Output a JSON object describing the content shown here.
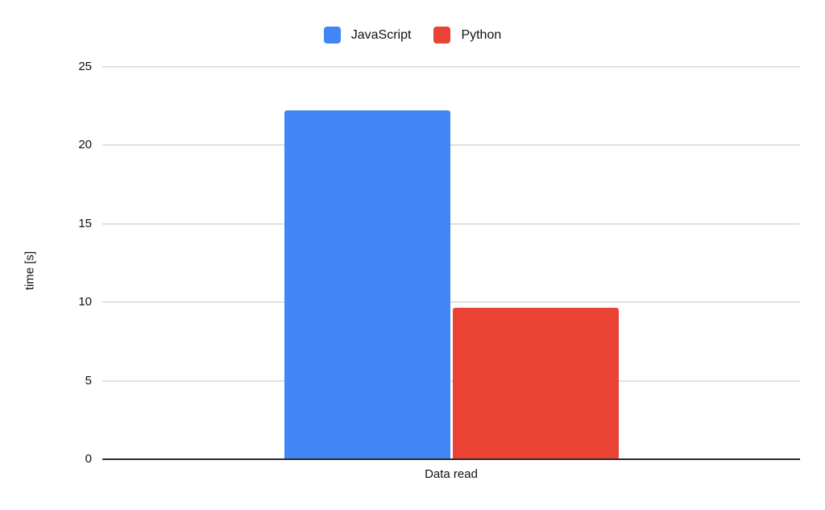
{
  "chart_data": {
    "type": "bar",
    "title": "",
    "categories": [
      "Data read"
    ],
    "series": [
      {
        "name": "JavaScript",
        "color": "#4285F4",
        "values": [
          22.2
        ]
      },
      {
        "name": "Python",
        "color": "#EA4335",
        "values": [
          9.6
        ]
      }
    ],
    "xlabel": "",
    "ylabel": "time [s]",
    "ylim": [
      0,
      25
    ],
    "yticks": [
      0,
      5,
      10,
      15,
      20,
      25
    ],
    "grid": true,
    "legend_position": "top",
    "colors": {
      "gridline": "#e1e1e1",
      "baseline": "#2a2a2a",
      "text": "#111111",
      "background": "#ffffff"
    }
  }
}
